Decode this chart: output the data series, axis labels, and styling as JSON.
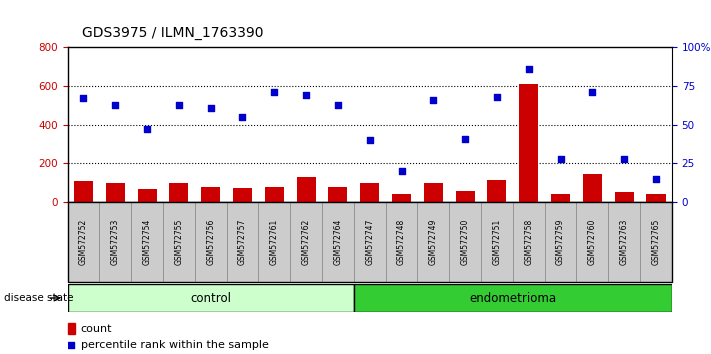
{
  "title": "GDS3975 / ILMN_1763390",
  "samples": [
    "GSM572752",
    "GSM572753",
    "GSM572754",
    "GSM572755",
    "GSM572756",
    "GSM572757",
    "GSM572761",
    "GSM572762",
    "GSM572764",
    "GSM572747",
    "GSM572748",
    "GSM572749",
    "GSM572750",
    "GSM572751",
    "GSM572758",
    "GSM572759",
    "GSM572760",
    "GSM572763",
    "GSM572765"
  ],
  "counts": [
    110,
    100,
    70,
    100,
    80,
    75,
    80,
    130,
    80,
    100,
    40,
    100,
    60,
    115,
    610,
    45,
    145,
    55,
    40
  ],
  "percentiles": [
    67,
    63,
    47,
    63,
    61,
    55,
    71,
    69,
    63,
    40,
    20,
    66,
    41,
    68,
    86,
    28,
    71,
    28,
    15
  ],
  "control_count": 9,
  "endometrioma_count": 10,
  "bar_color": "#cc0000",
  "dot_color": "#0000cc",
  "control_bg": "#ccffcc",
  "endometrioma_bg": "#33cc33",
  "label_bg": "#cccccc",
  "ylim_left": [
    0,
    800
  ],
  "yticks_left": [
    0,
    200,
    400,
    600,
    800
  ],
  "yticks_right": [
    0,
    25,
    50,
    75,
    100
  ],
  "legend_count": "count",
  "legend_pct": "percentile rank within the sample",
  "disease_state_label": "disease state",
  "control_label": "control",
  "endometrioma_label": "endometrioma"
}
